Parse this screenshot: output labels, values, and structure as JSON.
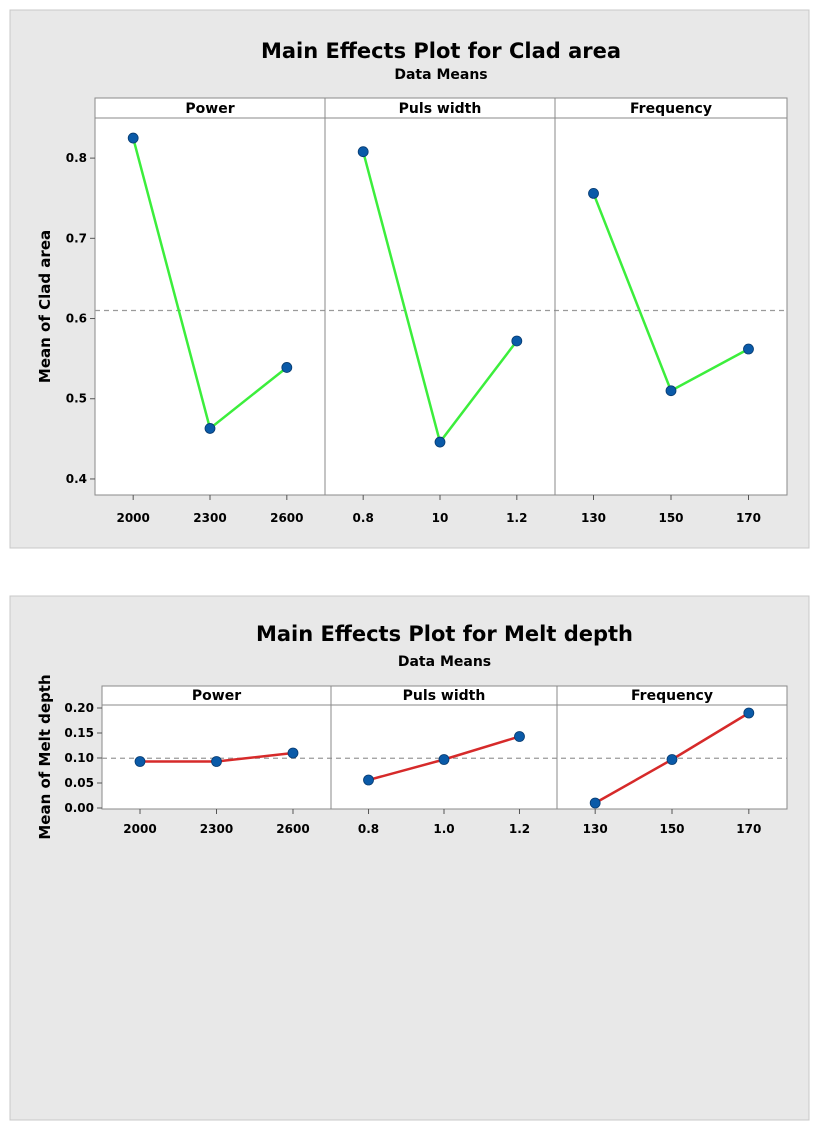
{
  "chart_data": [
    {
      "type": "line",
      "title": "Main Effects Plot for Clad area",
      "subtitle": "Data Means",
      "ylabel": "Mean of Clad area",
      "ylim": [
        0.38,
        0.85
      ],
      "yticks": [
        0.4,
        0.5,
        0.6,
        0.7,
        0.8
      ],
      "ytick_labels": [
        "0.4",
        "0.5",
        "0.6",
        "0.7",
        "0.8"
      ],
      "reference_line": 0.61,
      "line_color": "#3cee3c",
      "marker_color": "#0a5aa8",
      "panels": [
        {
          "name": "Power",
          "x": [
            "2000",
            "2300",
            "2600"
          ],
          "values": [
            0.825,
            0.463,
            0.539
          ]
        },
        {
          "name": "Puls width",
          "x": [
            "0.8",
            "10",
            "1.2"
          ],
          "values": [
            0.808,
            0.446,
            0.572
          ]
        },
        {
          "name": "Frequency",
          "x": [
            "130",
            "150",
            "170"
          ],
          "values": [
            0.756,
            0.51,
            0.562
          ]
        }
      ]
    },
    {
      "type": "line",
      "title": "Main Effects Plot for Melt depth",
      "subtitle": "Data Means",
      "ylabel": "Mean of Melt depth",
      "ylim": [
        -0.002,
        0.206
      ],
      "yticks": [
        0.0,
        0.05,
        0.1,
        0.15,
        0.2
      ],
      "ytick_labels": [
        "0.00",
        "0.05",
        "0.10",
        "0.15",
        "0.20"
      ],
      "reference_line": 0.0995,
      "line_color": "#d62a2a",
      "marker_color": "#0a5aa8",
      "panels": [
        {
          "name": "Power",
          "x": [
            "2000",
            "2300",
            "2600"
          ],
          "values": [
            0.093,
            0.093,
            0.11
          ]
        },
        {
          "name": "Puls width",
          "x": [
            "0.8",
            "1.0",
            "1.2"
          ],
          "values": [
            0.056,
            0.097,
            0.143
          ]
        },
        {
          "name": "Frequency",
          "x": [
            "130",
            "150",
            "170"
          ],
          "values": [
            0.01,
            0.097,
            0.19
          ]
        }
      ]
    }
  ]
}
